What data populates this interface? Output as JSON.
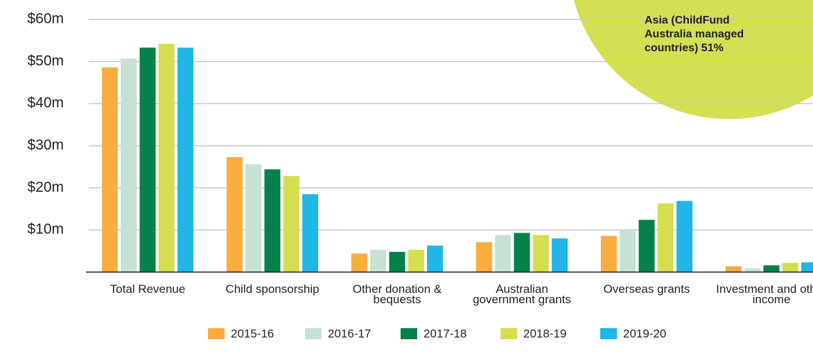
{
  "chart_data": {
    "type": "bar",
    "categories": [
      "Total Revenue",
      "Child sponsorship",
      "Other donation & bequests",
      "Australian government grants",
      "Overseas grants",
      "Investment and other income"
    ],
    "series": [
      {
        "name": "2015-16",
        "color": "#f9ad3e",
        "values": [
          48.6,
          27.3,
          4.4,
          7.1,
          8.6,
          1.4
        ]
      },
      {
        "name": "2016-17",
        "color": "#c5e2d3",
        "values": [
          50.7,
          25.6,
          5.3,
          8.8,
          10.2,
          0.9
        ]
      },
      {
        "name": "2017-18",
        "color": "#00824a",
        "values": [
          53.3,
          24.4,
          4.8,
          9.3,
          12.4,
          1.6
        ]
      },
      {
        "name": "2018-19",
        "color": "#d4de4e",
        "values": [
          54.2,
          22.8,
          5.3,
          8.8,
          16.3,
          2.2
        ]
      },
      {
        "name": "2019-20",
        "color": "#22b5e8",
        "values": [
          53.3,
          18.5,
          6.3,
          8.0,
          16.9,
          2.3
        ]
      }
    ],
    "ylim": [
      0,
      60
    ],
    "yticks": [
      {
        "value": 10,
        "label": "$10m"
      },
      {
        "value": 20,
        "label": "$20m"
      },
      {
        "value": 30,
        "label": "$30m"
      },
      {
        "value": 40,
        "label": "$40m"
      },
      {
        "value": 50,
        "label": "$50m"
      },
      {
        "value": 60,
        "label": "$60m"
      }
    ],
    "grid": true,
    "legend": "bottom",
    "annotation": "Asia (ChildFund Australia managed countries) 51%"
  }
}
